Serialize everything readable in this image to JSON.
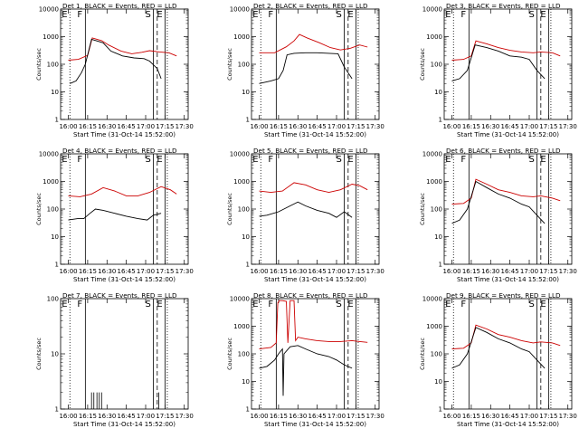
{
  "x_ticks": [
    "16:00",
    "16:15",
    "16:30",
    "16:45",
    "17:00",
    "17:15",
    "17:30"
  ],
  "chart_data": [
    {
      "type": "line",
      "title": "Det 1, BLACK = Events, RED = LLD",
      "xlabel": "",
      "ylabel": "Counts/sec",
      "yscale": "log",
      "ylim": [
        1,
        10000
      ],
      "yticks": [
        "1",
        "10",
        "100",
        "1000",
        "10000"
      ],
      "markers": [
        "E",
        "F",
        "S",
        "E"
      ],
      "series": [
        {
          "color": "#cc0000",
          "x": [
            16.0,
            16.13,
            16.25,
            16.31,
            16.43,
            16.52,
            16.68,
            16.82,
            16.95,
            17.05,
            17.18,
            17.3,
            17.4
          ],
          "y": [
            140,
            150,
            210,
            900,
            720,
            500,
            300,
            240,
            270,
            310,
            280,
            260,
            200
          ]
        },
        {
          "color": "#000000",
          "x": [
            16.02,
            16.1,
            16.17,
            16.22,
            16.3,
            16.45,
            16.55,
            16.7,
            16.85,
            16.98,
            17.05,
            17.15,
            17.2
          ],
          "y": [
            20,
            25,
            50,
            100,
            800,
            600,
            300,
            200,
            170,
            160,
            130,
            70,
            30
          ]
        }
      ]
    },
    {
      "type": "line",
      "title": "Det 2, BLACK = Events, RED = LLD",
      "xlabel": "",
      "ylabel": "Counts/sec",
      "yscale": "log",
      "ylim": [
        1,
        10000
      ],
      "yticks": [
        "1",
        "10",
        "100",
        "1000",
        "10000"
      ],
      "markers": [
        "E",
        "F",
        "S",
        "E"
      ],
      "series": [
        {
          "color": "#cc0000",
          "x": [
            16.0,
            16.2,
            16.35,
            16.45,
            16.52,
            16.62,
            16.78,
            16.92,
            17.05,
            17.18,
            17.3,
            17.4
          ],
          "y": [
            260,
            260,
            430,
            700,
            1200,
            900,
            600,
            400,
            330,
            380,
            500,
            420
          ]
        },
        {
          "color": "#000000",
          "x": [
            16.0,
            16.15,
            16.25,
            16.31,
            16.36,
            16.45,
            16.6,
            16.75,
            16.9,
            17.02,
            17.1,
            17.2
          ],
          "y": [
            20,
            25,
            30,
            60,
            220,
            250,
            260,
            260,
            250,
            240,
            80,
            30
          ]
        }
      ]
    },
    {
      "type": "line",
      "title": "Det 3, BLACK = Events, RED = LLD",
      "xlabel": "",
      "ylabel": "Counts/sec",
      "yscale": "log",
      "ylim": [
        1,
        10000
      ],
      "yticks": [
        "1",
        "10",
        "100",
        "1000",
        "10000"
      ],
      "markers": [
        "E",
        "F",
        "S",
        "E"
      ],
      "series": [
        {
          "color": "#cc0000",
          "x": [
            16.0,
            16.15,
            16.25,
            16.31,
            16.45,
            16.6,
            16.75,
            16.9,
            17.05,
            17.15,
            17.3,
            17.4
          ],
          "y": [
            140,
            150,
            200,
            700,
            550,
            400,
            320,
            280,
            260,
            280,
            260,
            200
          ]
        },
        {
          "color": "#000000",
          "x": [
            16.0,
            16.1,
            16.2,
            16.3,
            16.45,
            16.6,
            16.75,
            16.9,
            17.0,
            17.1,
            17.2
          ],
          "y": [
            25,
            30,
            60,
            500,
            400,
            300,
            200,
            180,
            150,
            60,
            30
          ]
        }
      ]
    },
    {
      "type": "line",
      "title": "Det 4, BLACK = Events, RED = LLD",
      "xlabel": "",
      "ylabel": "Counts/sec",
      "yscale": "log",
      "ylim": [
        1,
        10000
      ],
      "yticks": [
        "1",
        "10",
        "100",
        "1000",
        "10000"
      ],
      "markers": [
        "E",
        "F",
        "S",
        "E"
      ],
      "series": [
        {
          "color": "#cc0000",
          "x": [
            16.0,
            16.15,
            16.3,
            16.45,
            16.6,
            16.75,
            16.9,
            17.05,
            17.2,
            17.32,
            17.4
          ],
          "y": [
            300,
            280,
            350,
            600,
            450,
            300,
            300,
            400,
            650,
            500,
            350
          ]
        },
        {
          "color": "#000000",
          "x": [
            16.0,
            16.12,
            16.2,
            16.28,
            16.35,
            16.45,
            16.6,
            16.75,
            16.9,
            17.02,
            17.1,
            17.2
          ],
          "y": [
            40,
            45,
            45,
            70,
            100,
            90,
            70,
            55,
            45,
            40,
            60,
            70
          ]
        }
      ]
    },
    {
      "type": "line",
      "title": "Det 5, BLACK = Events, RED = LLD",
      "xlabel": "",
      "ylabel": "Counts/sec",
      "yscale": "log",
      "ylim": [
        1,
        10000
      ],
      "yticks": [
        "1",
        "10",
        "100",
        "1000",
        "10000"
      ],
      "markers": [
        "E",
        "F",
        "S",
        "E"
      ],
      "series": [
        {
          "color": "#cc0000",
          "x": [
            16.0,
            16.15,
            16.3,
            16.45,
            16.6,
            16.75,
            16.9,
            17.05,
            17.2,
            17.3,
            17.4
          ],
          "y": [
            450,
            400,
            450,
            900,
            750,
            500,
            400,
            500,
            800,
            700,
            500
          ]
        },
        {
          "color": "#000000",
          "x": [
            16.0,
            16.1,
            16.25,
            16.4,
            16.5,
            16.6,
            16.75,
            16.9,
            17.0,
            17.1,
            17.2
          ],
          "y": [
            55,
            60,
            80,
            130,
            180,
            130,
            90,
            70,
            50,
            80,
            50
          ]
        }
      ]
    },
    {
      "type": "line",
      "title": "Det 6, BLACK = Events, RED = LLD",
      "xlabel": "",
      "ylabel": "Counts/sec",
      "yscale": "log",
      "ylim": [
        1,
        10000
      ],
      "yticks": [
        "1",
        "10",
        "100",
        "1000",
        "10000"
      ],
      "markers": [
        "E",
        "F",
        "S",
        "E"
      ],
      "series": [
        {
          "color": "#cc0000",
          "x": [
            16.0,
            16.15,
            16.25,
            16.31,
            16.45,
            16.6,
            16.75,
            16.9,
            17.05,
            17.15,
            17.3,
            17.4
          ],
          "y": [
            150,
            160,
            250,
            1200,
            800,
            500,
            400,
            300,
            280,
            300,
            250,
            200
          ]
        },
        {
          "color": "#000000",
          "x": [
            16.0,
            16.1,
            16.2,
            16.31,
            16.45,
            16.6,
            16.75,
            16.9,
            17.0,
            17.1,
            17.2
          ],
          "y": [
            30,
            40,
            100,
            1000,
            600,
            350,
            250,
            150,
            120,
            60,
            30
          ]
        }
      ]
    },
    {
      "type": "line",
      "title": "Det 7, BLACK = Events, RED = LLD",
      "xlabel": "",
      "ylabel": "Counts/sec",
      "yscale": "log",
      "ylim": [
        1,
        100
      ],
      "yticks": [
        "1",
        "10",
        "100"
      ],
      "markers": [
        "E",
        "F",
        "S",
        "E"
      ],
      "series": [
        {
          "color": "#000000",
          "spikes": [
            16.3,
            16.33,
            16.37,
            16.4,
            16.43,
            17.17
          ]
        }
      ]
    },
    {
      "type": "line",
      "title": "Det 8, BLACK = Events, RED = LLD",
      "xlabel": "",
      "ylabel": "Counts/sec",
      "yscale": "log",
      "ylim": [
        1,
        10000
      ],
      "yticks": [
        "1",
        "10",
        "100",
        "1000",
        "10000"
      ],
      "markers": [
        "E",
        "F",
        "S",
        "E"
      ],
      "series": [
        {
          "color": "#cc0000",
          "x": [
            16.0,
            16.15,
            16.22,
            16.24,
            16.26,
            16.3,
            16.35,
            16.37,
            16.4,
            16.45,
            16.47,
            16.5,
            16.6,
            16.75,
            16.9,
            17.05,
            17.2,
            17.3,
            17.4
          ],
          "y": [
            150,
            170,
            250,
            7000,
            8500,
            8500,
            8000,
            250,
            8500,
            8500,
            300,
            400,
            350,
            300,
            280,
            280,
            300,
            280,
            260
          ]
        },
        {
          "color": "#000000",
          "x": [
            16.0,
            16.1,
            16.2,
            16.25,
            16.3,
            16.31,
            16.32,
            16.4,
            16.5,
            16.6,
            16.75,
            16.9,
            17.0,
            17.1,
            17.2
          ],
          "y": [
            30,
            35,
            60,
            100,
            150,
            3,
            100,
            180,
            200,
            150,
            100,
            80,
            60,
            40,
            30
          ]
        }
      ]
    },
    {
      "type": "line",
      "title": "Det 9, BLACK = Events, RED = LLD",
      "xlabel": "",
      "ylabel": "Counts/sec",
      "yscale": "log",
      "ylim": [
        1,
        10000
      ],
      "yticks": [
        "1",
        "10",
        "100",
        "1000",
        "10000"
      ],
      "markers": [
        "E",
        "F",
        "S",
        "E"
      ],
      "series": [
        {
          "color": "#cc0000",
          "x": [
            16.0,
            16.15,
            16.25,
            16.31,
            16.45,
            16.6,
            16.75,
            16.9,
            17.05,
            17.15,
            17.3,
            17.4
          ],
          "y": [
            150,
            160,
            250,
            1100,
            800,
            500,
            400,
            300,
            250,
            270,
            250,
            200
          ]
        },
        {
          "color": "#000000",
          "x": [
            16.0,
            16.1,
            16.2,
            16.31,
            16.45,
            16.6,
            16.75,
            16.9,
            17.0,
            17.1,
            17.2
          ],
          "y": [
            30,
            40,
            100,
            900,
            600,
            350,
            250,
            150,
            120,
            60,
            30
          ]
        }
      ]
    }
  ],
  "xaxis_label": "Start Time (31-Oct-14 15:52:00)"
}
